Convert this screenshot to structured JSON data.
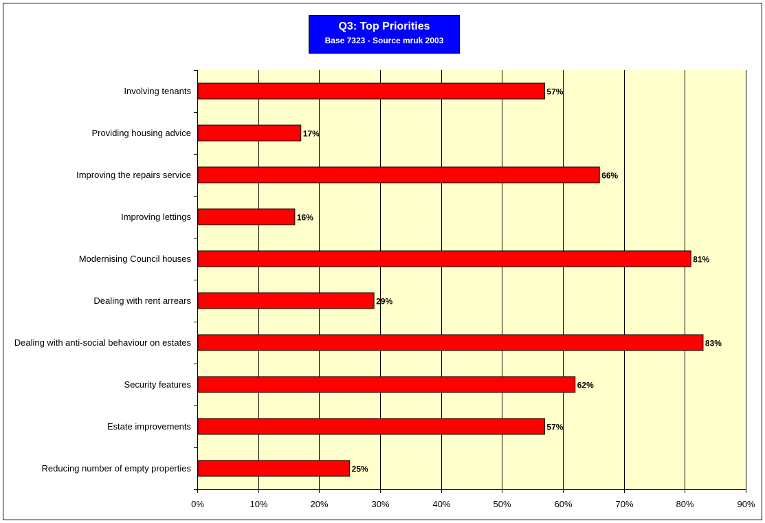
{
  "chart_data": {
    "type": "bar",
    "orientation": "horizontal",
    "title": "Q3: Top Priorities",
    "subtitle": "Base 7323 - Source mruk 2003",
    "categories": [
      "Involving tenants",
      "Providing housing advice",
      "Improving the repairs service",
      "Improving lettings",
      "Modernising Council houses",
      "Dealing with rent arrears",
      "Dealing with anti-social behaviour on estates",
      "Security features",
      "Estate improvements",
      "Reducing number of empty properties"
    ],
    "values": [
      57,
      17,
      66,
      16,
      81,
      29,
      83,
      62,
      57,
      25
    ],
    "data_labels": [
      "57%",
      "17%",
      "66%",
      "16%",
      "81%",
      "29%",
      "83%",
      "62%",
      "57%",
      "25%"
    ],
    "xlim": [
      0,
      90
    ],
    "xticks": [
      0,
      10,
      20,
      30,
      40,
      50,
      60,
      70,
      80,
      90
    ],
    "xtick_labels": [
      "0%",
      "10%",
      "20%",
      "30%",
      "40%",
      "50%",
      "60%",
      "70%",
      "80%",
      "90%"
    ],
    "xlabel": "",
    "ylabel": "",
    "grid": true,
    "legend": "none",
    "colors": {
      "bar": "#ff0000",
      "plot_background": "#ffffcc",
      "title_background": "#0000ff",
      "title_text": "#ffffff",
      "gridline": "#000000"
    }
  }
}
